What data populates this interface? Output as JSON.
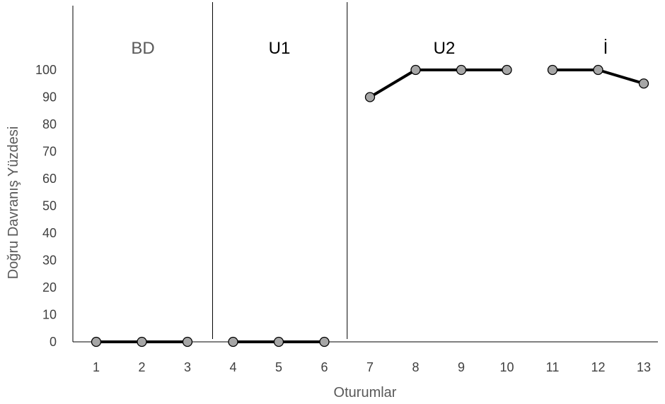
{
  "chart_data": {
    "type": "line",
    "xlabel": "Oturumlar",
    "ylabel": "Doğru Davranış Yüzdesi",
    "ylim": [
      0,
      100
    ],
    "yticks": [
      0,
      10,
      20,
      30,
      40,
      50,
      60,
      70,
      80,
      90,
      100
    ],
    "xlim": [
      0.5,
      13.5
    ],
    "xticks": [
      1,
      2,
      3,
      4,
      5,
      6,
      7,
      8,
      9,
      10,
      11,
      12,
      13
    ],
    "grid": false,
    "legend": "none",
    "line_color": "#000000",
    "marker_color": "#a6a6a6",
    "phase_lines": [
      3.55,
      6.5
    ],
    "phases": [
      {
        "label": "BD",
        "x": [
          1,
          2,
          3
        ],
        "values": [
          0,
          0,
          0
        ]
      },
      {
        "label": "U1",
        "x": [
          4,
          5,
          6
        ],
        "values": [
          0,
          0,
          0
        ]
      },
      {
        "label": "U2",
        "x": [
          7,
          8,
          9,
          10
        ],
        "values": [
          90,
          100,
          100,
          100
        ]
      },
      {
        "label": "İ",
        "x": [
          11,
          12,
          13
        ],
        "values": [
          100,
          100,
          95
        ]
      }
    ]
  }
}
